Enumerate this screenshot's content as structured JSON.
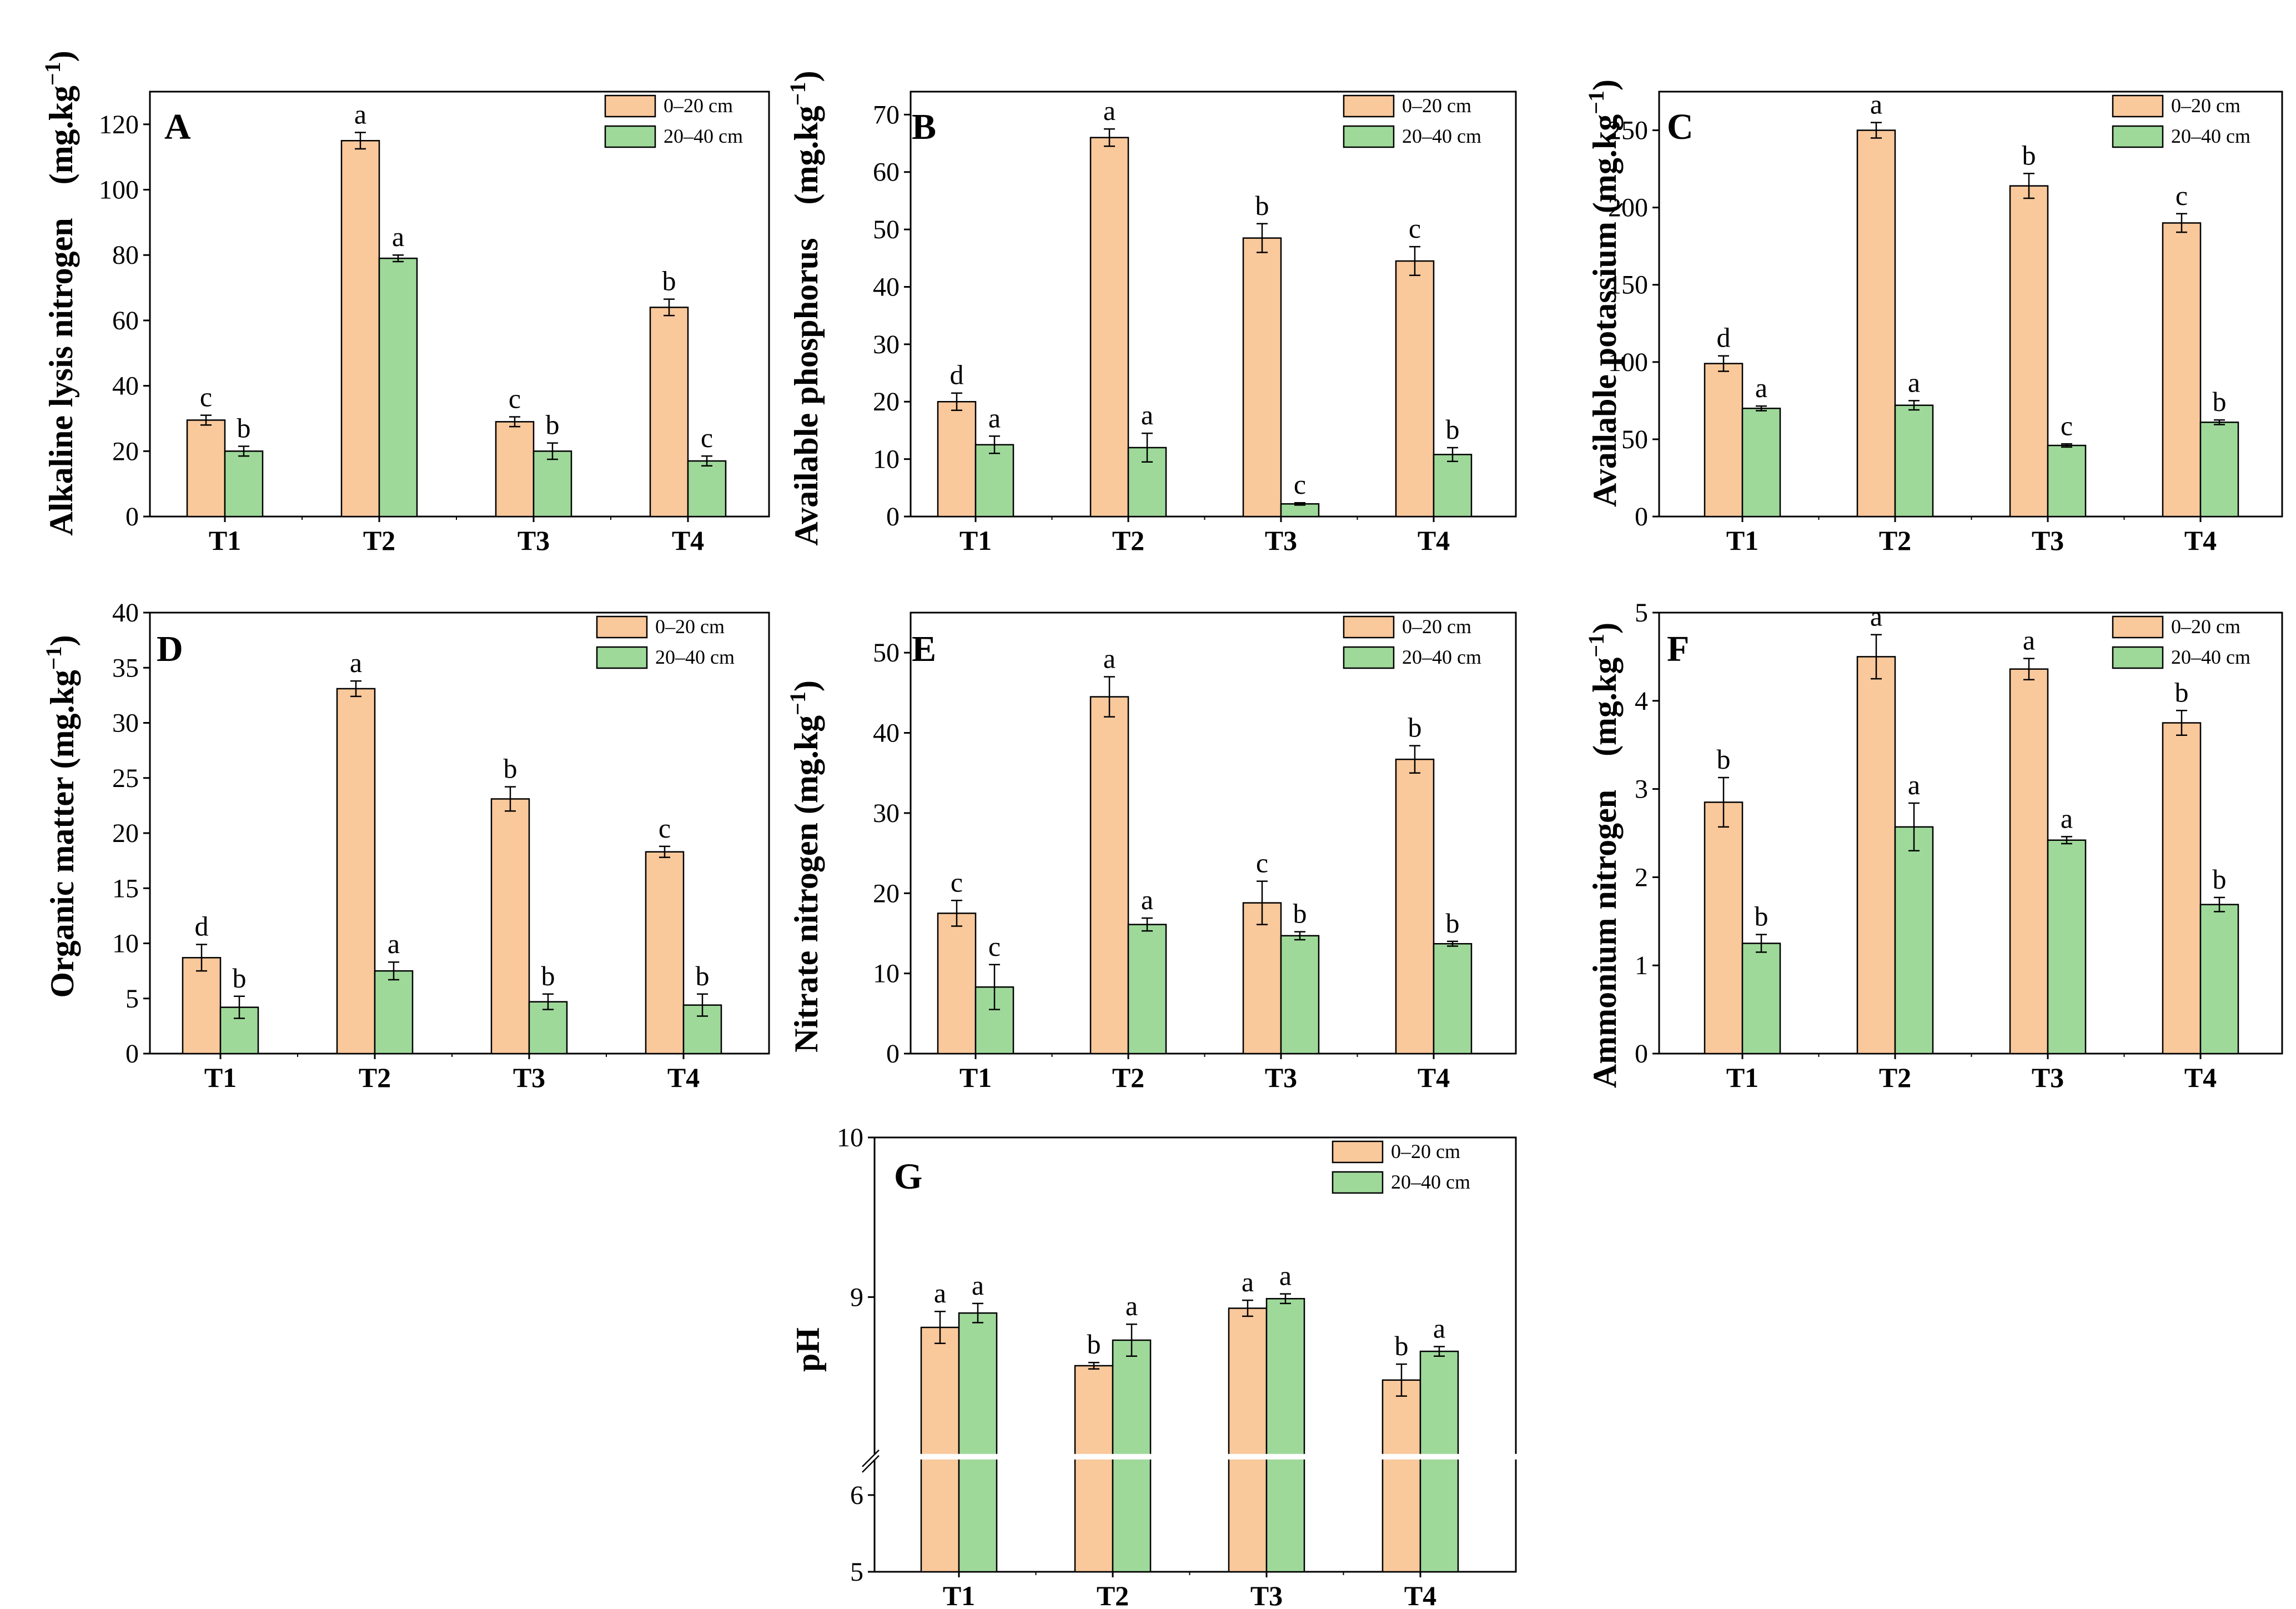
{
  "figure": {
    "colors": {
      "layer1": "#F9C89B",
      "layer2": "#9ED99A",
      "stroke": "#000000"
    },
    "legend": [
      "0–20 cm",
      "20–40 cm"
    ]
  },
  "chart_data": [
    {
      "id": "A",
      "type": "bar",
      "panel_letter": "A",
      "ylabel": "Alkaline lysis nitrogen　(mg.kg",
      "ylabel_sup": "−1",
      "ylabel_end": ")",
      "categories": [
        "T1",
        "T2",
        "T3",
        "T4"
      ],
      "yticks": [
        0,
        20,
        40,
        60,
        80,
        100,
        120
      ],
      "ylim": [
        0,
        130
      ],
      "series": [
        {
          "name": "0–20 cm",
          "values": [
            29.5,
            115,
            29,
            64
          ],
          "errors": [
            1.5,
            2.5,
            1.5,
            2.5
          ],
          "letters": [
            "c",
            "a",
            "c",
            "b"
          ]
        },
        {
          "name": "20–40 cm",
          "values": [
            20,
            79,
            20,
            17
          ],
          "errors": [
            1.5,
            1,
            2.5,
            1.5
          ],
          "letters": [
            "b",
            "a",
            "b",
            "c"
          ]
        }
      ]
    },
    {
      "id": "B",
      "type": "bar",
      "panel_letter": "B",
      "ylabel": "Available phosphorus　(mg.kg",
      "ylabel_sup": "−1",
      "ylabel_end": ")",
      "categories": [
        "T1",
        "T2",
        "T3",
        "T4"
      ],
      "yticks": [
        0,
        10,
        20,
        30,
        40,
        50,
        60,
        70
      ],
      "ylim": [
        0,
        74
      ],
      "series": [
        {
          "name": "0–20 cm",
          "values": [
            20,
            66,
            48.5,
            44.5
          ],
          "errors": [
            1.5,
            1.5,
            2.5,
            2.5
          ],
          "letters": [
            "d",
            "a",
            "b",
            "c"
          ]
        },
        {
          "name": "20–40 cm",
          "values": [
            12.5,
            12,
            2.2,
            10.8
          ],
          "errors": [
            1.5,
            2.5,
            0.2,
            1.2
          ],
          "letters": [
            "a",
            "a",
            "c",
            "b"
          ]
        }
      ]
    },
    {
      "id": "C",
      "type": "bar",
      "panel_letter": "C",
      "ylabel": "Available potassium (mg.kg",
      "ylabel_sup": "−1",
      "ylabel_end": ")",
      "categories": [
        "T1",
        "T2",
        "T3",
        "T4"
      ],
      "yticks": [
        0,
        50,
        100,
        150,
        200,
        250
      ],
      "ylim": [
        0,
        275
      ],
      "series": [
        {
          "name": "0–20 cm",
          "values": [
            99,
            250,
            214,
            190
          ],
          "errors": [
            5,
            5,
            8,
            6
          ],
          "letters": [
            "d",
            "a",
            "b",
            "c"
          ]
        },
        {
          "name": "20–40 cm",
          "values": [
            70,
            72,
            46,
            61
          ],
          "errors": [
            1.5,
            3,
            1,
            1.5
          ],
          "letters": [
            "a",
            "a",
            "c",
            "b"
          ]
        }
      ]
    },
    {
      "id": "D",
      "type": "bar",
      "panel_letter": "D",
      "ylabel": "Organic matter (mg.kg",
      "ylabel_sup": "−1",
      "ylabel_end": ")",
      "categories": [
        "T1",
        "T2",
        "T3",
        "T4"
      ],
      "yticks": [
        0,
        5,
        10,
        15,
        20,
        25,
        30,
        35,
        40
      ],
      "ylim": [
        0,
        40
      ],
      "series": [
        {
          "name": "0–20 cm",
          "values": [
            8.7,
            33.1,
            23.1,
            18.3
          ],
          "errors": [
            1.2,
            0.7,
            1.1,
            0.5
          ],
          "letters": [
            "d",
            "a",
            "b",
            "c"
          ]
        },
        {
          "name": "20–40 cm",
          "values": [
            4.2,
            7.5,
            4.7,
            4.4
          ],
          "errors": [
            1,
            0.8,
            0.7,
            1
          ],
          "letters": [
            "b",
            "a",
            "b",
            "b"
          ]
        }
      ]
    },
    {
      "id": "E",
      "type": "bar",
      "panel_letter": "E",
      "ylabel": "Nitrate nitrogen (mg.kg",
      "ylabel_sup": "−1",
      "ylabel_end": ")",
      "categories": [
        "T1",
        "T2",
        "T3",
        "T4"
      ],
      "yticks": [
        0,
        10,
        20,
        30,
        40,
        50
      ],
      "ylim": [
        0,
        55
      ],
      "series": [
        {
          "name": "0–20 cm",
          "values": [
            17.5,
            44.5,
            18.8,
            36.7
          ],
          "errors": [
            1.6,
            2.5,
            2.7,
            1.7
          ],
          "letters": [
            "c",
            "a",
            "c",
            "b"
          ]
        },
        {
          "name": "20–40 cm",
          "values": [
            8.3,
            16.1,
            14.7,
            13.7
          ],
          "errors": [
            2.8,
            0.8,
            0.5,
            0.3
          ],
          "letters": [
            "c",
            "a",
            "b",
            "b"
          ]
        }
      ]
    },
    {
      "id": "F",
      "type": "bar",
      "panel_letter": "F",
      "ylabel": "Ammonium nitrogen　(mg.kg",
      "ylabel_sup": "−1",
      "ylabel_end": ")",
      "categories": [
        "T1",
        "T2",
        "T3",
        "T4"
      ],
      "yticks": [
        0,
        1,
        2,
        3,
        4,
        5
      ],
      "ylim": [
        0,
        5
      ],
      "series": [
        {
          "name": "0–20 cm",
          "values": [
            2.85,
            4.5,
            4.36,
            3.75
          ],
          "errors": [
            0.28,
            0.25,
            0.12,
            0.14
          ],
          "letters": [
            "b",
            "a",
            "a",
            "b"
          ]
        },
        {
          "name": "20–40 cm",
          "values": [
            1.25,
            2.57,
            2.42,
            1.69
          ],
          "errors": [
            0.1,
            0.27,
            0.04,
            0.08
          ],
          "letters": [
            "b",
            "a",
            "a",
            "b"
          ]
        }
      ]
    },
    {
      "id": "G",
      "type": "bar",
      "panel_letter": "G",
      "ylabel": "pH",
      "ylabel_sup": "",
      "ylabel_end": "",
      "categories": [
        "T1",
        "T2",
        "T3",
        "T4"
      ],
      "yticks": [
        5,
        6,
        9,
        10
      ],
      "ylim": [
        5,
        10
      ],
      "axis_break": {
        "from": 6.5,
        "to": 8.0
      },
      "series": [
        {
          "name": "0–20 cm",
          "values": [
            8.81,
            8.57,
            8.93,
            8.48
          ],
          "errors": [
            0.1,
            0.02,
            0.05,
            0.1
          ],
          "letters": [
            "a",
            "b",
            "a",
            "b"
          ]
        },
        {
          "name": "20–40 cm",
          "values": [
            8.9,
            8.73,
            8.99,
            8.66
          ],
          "errors": [
            0.06,
            0.1,
            0.03,
            0.03
          ],
          "letters": [
            "a",
            "a",
            "a",
            "a"
          ]
        }
      ]
    }
  ]
}
